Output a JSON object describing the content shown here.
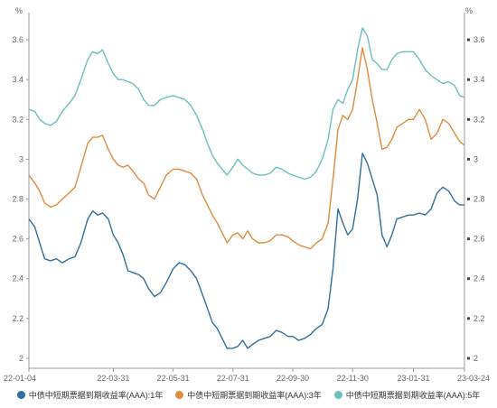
{
  "chart_data": {
    "type": "line",
    "unit_left": "%",
    "unit_right": "%",
    "ylim": [
      1.95,
      3.7
    ],
    "yticks": [
      "2",
      "2.2",
      "2.4",
      "2.6",
      "2.8",
      "3",
      "3.2",
      "3.4",
      "3.6"
    ],
    "xlim": [
      "2022-01-04",
      "2023-03-24"
    ],
    "xticks": [
      {
        "label": "22-01-04",
        "date": "2022-01-04"
      },
      {
        "label": "22-03-31",
        "date": "2022-03-31"
      },
      {
        "label": "22-05-31",
        "date": "2022-05-31"
      },
      {
        "label": "22-07-31",
        "date": "2022-07-31"
      },
      {
        "label": "22-09-30",
        "date": "2022-09-30"
      },
      {
        "label": "22-11-30",
        "date": "2022-11-30"
      },
      {
        "label": "23-01-31",
        "date": "2023-01-31"
      },
      {
        "label": "23-03-24",
        "date": "2023-03-24"
      }
    ],
    "grid": false,
    "legend_position": "bottom",
    "series": [
      {
        "name": "中债中短期票据到期收益率(AAA):1年",
        "color": "#2f6f9f",
        "points": [
          [
            "2022-01-04",
            2.7
          ],
          [
            "2022-01-10",
            2.66
          ],
          [
            "2022-01-15",
            2.58
          ],
          [
            "2022-01-20",
            2.5
          ],
          [
            "2022-01-26",
            2.49
          ],
          [
            "2022-02-01",
            2.5
          ],
          [
            "2022-02-07",
            2.48
          ],
          [
            "2022-02-14",
            2.5
          ],
          [
            "2022-02-20",
            2.51
          ],
          [
            "2022-02-26",
            2.58
          ],
          [
            "2022-03-05",
            2.7
          ],
          [
            "2022-03-10",
            2.74
          ],
          [
            "2022-03-15",
            2.72
          ],
          [
            "2022-03-20",
            2.73
          ],
          [
            "2022-03-26",
            2.7
          ],
          [
            "2022-03-31",
            2.62
          ],
          [
            "2022-04-05",
            2.58
          ],
          [
            "2022-04-10",
            2.52
          ],
          [
            "2022-04-15",
            2.44
          ],
          [
            "2022-04-20",
            2.43
          ],
          [
            "2022-04-26",
            2.42
          ],
          [
            "2022-05-01",
            2.4
          ],
          [
            "2022-05-06",
            2.35
          ],
          [
            "2022-05-12",
            2.31
          ],
          [
            "2022-05-18",
            2.33
          ],
          [
            "2022-05-24",
            2.38
          ],
          [
            "2022-05-31",
            2.45
          ],
          [
            "2022-06-06",
            2.48
          ],
          [
            "2022-06-12",
            2.47
          ],
          [
            "2022-06-18",
            2.44
          ],
          [
            "2022-06-24",
            2.4
          ],
          [
            "2022-06-30",
            2.32
          ],
          [
            "2022-07-05",
            2.25
          ],
          [
            "2022-07-10",
            2.18
          ],
          [
            "2022-07-15",
            2.15
          ],
          [
            "2022-07-20",
            2.1
          ],
          [
            "2022-07-25",
            2.05
          ],
          [
            "2022-07-31",
            2.05
          ],
          [
            "2022-08-05",
            2.06
          ],
          [
            "2022-08-10",
            2.09
          ],
          [
            "2022-08-15",
            2.05
          ],
          [
            "2022-08-20",
            2.07
          ],
          [
            "2022-08-26",
            2.09
          ],
          [
            "2022-09-01",
            2.1
          ],
          [
            "2022-09-07",
            2.11
          ],
          [
            "2022-09-13",
            2.14
          ],
          [
            "2022-09-19",
            2.13
          ],
          [
            "2022-09-25",
            2.11
          ],
          [
            "2022-09-30",
            2.11
          ],
          [
            "2022-10-06",
            2.09
          ],
          [
            "2022-10-12",
            2.1
          ],
          [
            "2022-10-18",
            2.12
          ],
          [
            "2022-10-24",
            2.15
          ],
          [
            "2022-10-30",
            2.17
          ],
          [
            "2022-11-05",
            2.25
          ],
          [
            "2022-11-10",
            2.45
          ],
          [
            "2022-11-15",
            2.75
          ],
          [
            "2022-11-20",
            2.68
          ],
          [
            "2022-11-25",
            2.62
          ],
          [
            "2022-11-30",
            2.65
          ],
          [
            "2022-12-05",
            2.8
          ],
          [
            "2022-12-10",
            3.03
          ],
          [
            "2022-12-15",
            2.98
          ],
          [
            "2022-12-20",
            2.9
          ],
          [
            "2022-12-25",
            2.82
          ],
          [
            "2022-12-30",
            2.62
          ],
          [
            "2023-01-04",
            2.56
          ],
          [
            "2023-01-09",
            2.62
          ],
          [
            "2023-01-14",
            2.7
          ],
          [
            "2023-01-20",
            2.71
          ],
          [
            "2023-01-26",
            2.72
          ],
          [
            "2023-01-31",
            2.72
          ],
          [
            "2023-02-06",
            2.73
          ],
          [
            "2023-02-12",
            2.72
          ],
          [
            "2023-02-18",
            2.75
          ],
          [
            "2023-02-24",
            2.83
          ],
          [
            "2023-03-02",
            2.86
          ],
          [
            "2023-03-08",
            2.84
          ],
          [
            "2023-03-14",
            2.79
          ],
          [
            "2023-03-19",
            2.77
          ],
          [
            "2023-03-24",
            2.77
          ]
        ]
      },
      {
        "name": "中债中短期票据到期收益率(AAA):3年",
        "color": "#e08a3c",
        "points": [
          [
            "2022-01-04",
            2.92
          ],
          [
            "2022-01-10",
            2.88
          ],
          [
            "2022-01-15",
            2.84
          ],
          [
            "2022-01-20",
            2.78
          ],
          [
            "2022-01-26",
            2.76
          ],
          [
            "2022-02-01",
            2.77
          ],
          [
            "2022-02-07",
            2.8
          ],
          [
            "2022-02-14",
            2.83
          ],
          [
            "2022-02-20",
            2.86
          ],
          [
            "2022-02-26",
            2.96
          ],
          [
            "2022-03-05",
            3.08
          ],
          [
            "2022-03-10",
            3.11
          ],
          [
            "2022-03-15",
            3.11
          ],
          [
            "2022-03-20",
            3.12
          ],
          [
            "2022-03-26",
            3.05
          ],
          [
            "2022-03-31",
            3.0
          ],
          [
            "2022-04-05",
            2.97
          ],
          [
            "2022-04-10",
            2.96
          ],
          [
            "2022-04-15",
            2.97
          ],
          [
            "2022-04-20",
            2.94
          ],
          [
            "2022-04-26",
            2.9
          ],
          [
            "2022-05-01",
            2.88
          ],
          [
            "2022-05-06",
            2.82
          ],
          [
            "2022-05-12",
            2.8
          ],
          [
            "2022-05-18",
            2.86
          ],
          [
            "2022-05-24",
            2.92
          ],
          [
            "2022-05-31",
            2.95
          ],
          [
            "2022-06-06",
            2.95
          ],
          [
            "2022-06-12",
            2.94
          ],
          [
            "2022-06-18",
            2.93
          ],
          [
            "2022-06-24",
            2.9
          ],
          [
            "2022-06-30",
            2.82
          ],
          [
            "2022-07-05",
            2.77
          ],
          [
            "2022-07-10",
            2.72
          ],
          [
            "2022-07-15",
            2.68
          ],
          [
            "2022-07-20",
            2.63
          ],
          [
            "2022-07-25",
            2.58
          ],
          [
            "2022-07-31",
            2.62
          ],
          [
            "2022-08-05",
            2.63
          ],
          [
            "2022-08-10",
            2.6
          ],
          [
            "2022-08-15",
            2.64
          ],
          [
            "2022-08-20",
            2.6
          ],
          [
            "2022-08-26",
            2.58
          ],
          [
            "2022-09-01",
            2.58
          ],
          [
            "2022-09-07",
            2.59
          ],
          [
            "2022-09-13",
            2.62
          ],
          [
            "2022-09-19",
            2.62
          ],
          [
            "2022-09-25",
            2.61
          ],
          [
            "2022-09-30",
            2.59
          ],
          [
            "2022-10-06",
            2.57
          ],
          [
            "2022-10-12",
            2.56
          ],
          [
            "2022-10-18",
            2.55
          ],
          [
            "2022-10-24",
            2.58
          ],
          [
            "2022-10-30",
            2.6
          ],
          [
            "2022-11-05",
            2.68
          ],
          [
            "2022-11-10",
            2.9
          ],
          [
            "2022-11-15",
            3.15
          ],
          [
            "2022-11-20",
            3.22
          ],
          [
            "2022-11-25",
            3.2
          ],
          [
            "2022-11-30",
            3.25
          ],
          [
            "2022-12-05",
            3.4
          ],
          [
            "2022-12-10",
            3.56
          ],
          [
            "2022-12-15",
            3.45
          ],
          [
            "2022-12-20",
            3.3
          ],
          [
            "2022-12-25",
            3.18
          ],
          [
            "2022-12-30",
            3.05
          ],
          [
            "2023-01-04",
            3.06
          ],
          [
            "2023-01-09",
            3.1
          ],
          [
            "2023-01-14",
            3.16
          ],
          [
            "2023-01-20",
            3.18
          ],
          [
            "2023-01-26",
            3.2
          ],
          [
            "2023-01-31",
            3.2
          ],
          [
            "2023-02-06",
            3.25
          ],
          [
            "2023-02-12",
            3.2
          ],
          [
            "2023-02-18",
            3.1
          ],
          [
            "2023-02-24",
            3.13
          ],
          [
            "2023-03-02",
            3.2
          ],
          [
            "2023-03-08",
            3.18
          ],
          [
            "2023-03-14",
            3.13
          ],
          [
            "2023-03-19",
            3.09
          ],
          [
            "2023-03-24",
            3.07
          ]
        ]
      },
      {
        "name": "中债中短期票据到期收益率(AAA):5年",
        "color": "#6bbfbf",
        "points": [
          [
            "2022-01-04",
            3.25
          ],
          [
            "2022-01-10",
            3.24
          ],
          [
            "2022-01-15",
            3.2
          ],
          [
            "2022-01-20",
            3.18
          ],
          [
            "2022-01-26",
            3.17
          ],
          [
            "2022-02-01",
            3.19
          ],
          [
            "2022-02-07",
            3.24
          ],
          [
            "2022-02-14",
            3.28
          ],
          [
            "2022-02-20",
            3.32
          ],
          [
            "2022-02-26",
            3.4
          ],
          [
            "2022-03-05",
            3.5
          ],
          [
            "2022-03-10",
            3.54
          ],
          [
            "2022-03-15",
            3.53
          ],
          [
            "2022-03-20",
            3.55
          ],
          [
            "2022-03-26",
            3.48
          ],
          [
            "2022-03-31",
            3.43
          ],
          [
            "2022-04-05",
            3.4
          ],
          [
            "2022-04-10",
            3.4
          ],
          [
            "2022-04-15",
            3.39
          ],
          [
            "2022-04-20",
            3.38
          ],
          [
            "2022-04-26",
            3.35
          ],
          [
            "2022-05-01",
            3.3
          ],
          [
            "2022-05-06",
            3.27
          ],
          [
            "2022-05-12",
            3.27
          ],
          [
            "2022-05-18",
            3.3
          ],
          [
            "2022-05-24",
            3.31
          ],
          [
            "2022-05-31",
            3.32
          ],
          [
            "2022-06-06",
            3.31
          ],
          [
            "2022-06-12",
            3.3
          ],
          [
            "2022-06-18",
            3.27
          ],
          [
            "2022-06-24",
            3.22
          ],
          [
            "2022-06-30",
            3.15
          ],
          [
            "2022-07-05",
            3.08
          ],
          [
            "2022-07-10",
            3.02
          ],
          [
            "2022-07-15",
            2.98
          ],
          [
            "2022-07-20",
            2.95
          ],
          [
            "2022-07-25",
            2.92
          ],
          [
            "2022-07-31",
            2.96
          ],
          [
            "2022-08-05",
            3.0
          ],
          [
            "2022-08-10",
            2.97
          ],
          [
            "2022-08-15",
            2.95
          ],
          [
            "2022-08-20",
            2.93
          ],
          [
            "2022-08-26",
            2.92
          ],
          [
            "2022-09-01",
            2.92
          ],
          [
            "2022-09-07",
            2.93
          ],
          [
            "2022-09-13",
            2.96
          ],
          [
            "2022-09-19",
            2.95
          ],
          [
            "2022-09-25",
            2.93
          ],
          [
            "2022-09-30",
            2.92
          ],
          [
            "2022-10-06",
            2.91
          ],
          [
            "2022-10-12",
            2.9
          ],
          [
            "2022-10-18",
            2.91
          ],
          [
            "2022-10-24",
            2.94
          ],
          [
            "2022-10-30",
            3.0
          ],
          [
            "2022-11-05",
            3.1
          ],
          [
            "2022-11-10",
            3.25
          ],
          [
            "2022-11-15",
            3.3
          ],
          [
            "2022-11-20",
            3.28
          ],
          [
            "2022-11-25",
            3.35
          ],
          [
            "2022-11-30",
            3.4
          ],
          [
            "2022-12-05",
            3.55
          ],
          [
            "2022-12-10",
            3.66
          ],
          [
            "2022-12-15",
            3.62
          ],
          [
            "2022-12-20",
            3.5
          ],
          [
            "2022-12-25",
            3.48
          ],
          [
            "2022-12-30",
            3.45
          ],
          [
            "2023-01-04",
            3.45
          ],
          [
            "2023-01-09",
            3.5
          ],
          [
            "2023-01-14",
            3.53
          ],
          [
            "2023-01-20",
            3.54
          ],
          [
            "2023-01-26",
            3.54
          ],
          [
            "2023-01-31",
            3.54
          ],
          [
            "2023-02-06",
            3.5
          ],
          [
            "2023-02-12",
            3.45
          ],
          [
            "2023-02-18",
            3.42
          ],
          [
            "2023-02-24",
            3.4
          ],
          [
            "2023-03-02",
            3.38
          ],
          [
            "2023-03-08",
            3.39
          ],
          [
            "2023-03-14",
            3.37
          ],
          [
            "2023-03-19",
            3.32
          ],
          [
            "2023-03-24",
            3.31
          ]
        ]
      }
    ]
  }
}
